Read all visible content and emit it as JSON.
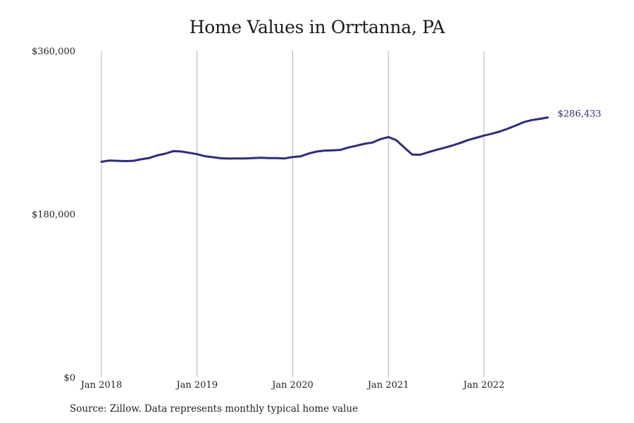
{
  "chart_data": {
    "type": "line",
    "title": "Home Values in Orrtanna, PA",
    "xlabel": "",
    "ylabel": "",
    "source": "Source: Zillow. Data represents monthly typical home value",
    "ylim": [
      0,
      360000
    ],
    "y_ticks": [
      {
        "value": 0,
        "label": "$0"
      },
      {
        "value": 180000,
        "label": "$180,000"
      },
      {
        "value": 360000,
        "label": "$360,000"
      }
    ],
    "x_ticks": [
      {
        "value": 0,
        "label": "Jan 2018"
      },
      {
        "value": 12,
        "label": "Jan 2019"
      },
      {
        "value": 24,
        "label": "Jan 2020"
      },
      {
        "value": 36,
        "label": "Jan 2021"
      },
      {
        "value": 48,
        "label": "Jan 2022"
      }
    ],
    "grid": "vertical",
    "line_color": "#2e2a85",
    "end_label": "$286,433",
    "series": [
      {
        "values": [
          237500,
          238900,
          238600,
          238300,
          238600,
          240300,
          241700,
          244600,
          246500,
          249300,
          248900,
          247500,
          245900,
          243700,
          242600,
          241400,
          241100,
          241200,
          241300,
          241600,
          242000,
          241600,
          241600,
          241300,
          242800,
          243600,
          246600,
          248800,
          249900,
          250100,
          250700,
          253300,
          255300,
          257400,
          258800,
          262500,
          264800,
          261300,
          253300,
          245500,
          245300,
          248100,
          250600,
          252900,
          255400,
          258300,
          261500,
          264000,
          266500,
          268500,
          271000,
          274100,
          277600,
          281300,
          283600,
          284900,
          286433
        ]
      }
    ]
  }
}
